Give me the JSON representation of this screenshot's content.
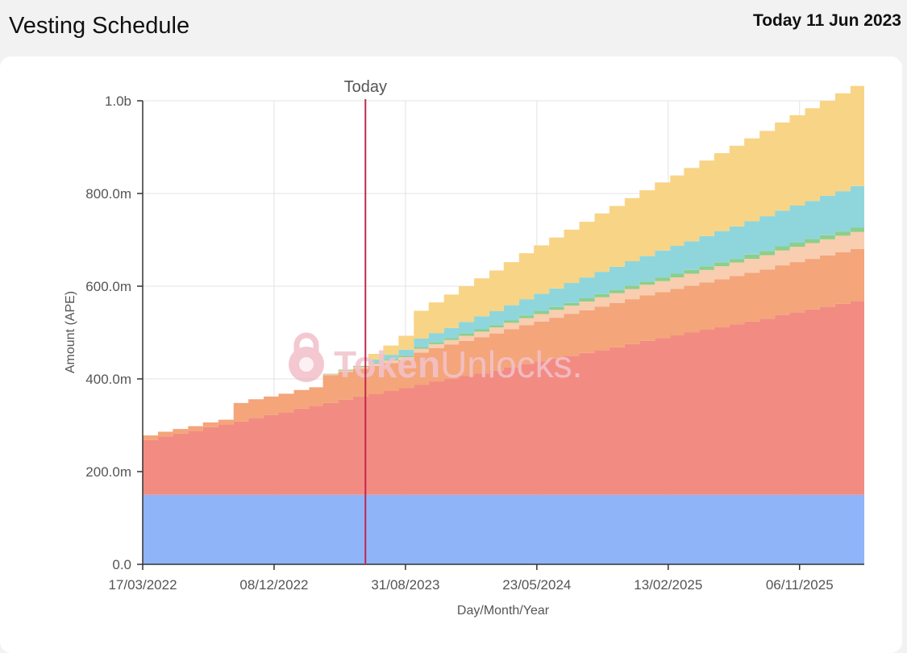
{
  "header": {
    "title": "Vesting Schedule",
    "today": "Today 11 Jun 2023"
  },
  "watermark": {
    "text": "TokenUnlocks.",
    "strong": "Token",
    "light": "Unlocks."
  },
  "chart_data": {
    "type": "area",
    "stacked": true,
    "step": true,
    "xlabel": "Day/Month/Year",
    "ylabel": "Amount (APE)",
    "ylim": [
      0,
      1000000000
    ],
    "y_ticks": [
      {
        "value": 0,
        "label": "0.0"
      },
      {
        "value": 200000000,
        "label": "200.0m"
      },
      {
        "value": 400000000,
        "label": "400.0m"
      },
      {
        "value": 600000000,
        "label": "600.0m"
      },
      {
        "value": 800000000,
        "label": "800.0m"
      },
      {
        "value": 1000000000,
        "label": "1.0b"
      }
    ],
    "x_range": [
      "2022-03-17",
      "2026-03-17"
    ],
    "x_ticks": [
      {
        "date": "2022-03-17",
        "label": "17/03/2022"
      },
      {
        "date": "2022-12-08",
        "label": "08/12/2022"
      },
      {
        "date": "2023-08-31",
        "label": "31/08/2023"
      },
      {
        "date": "2024-05-23",
        "label": "23/05/2024"
      },
      {
        "date": "2025-02-13",
        "label": "13/02/2025"
      },
      {
        "date": "2025-11-06",
        "label": "06/11/2025"
      }
    ],
    "today": {
      "date": "2023-06-11",
      "label": "Today"
    },
    "grid": true,
    "periods": [
      "2022-03",
      "2022-04",
      "2022-05",
      "2022-06",
      "2022-07",
      "2022-08",
      "2022-09",
      "2022-10",
      "2022-11",
      "2022-12",
      "2023-01",
      "2023-02",
      "2023-03",
      "2023-04",
      "2023-05",
      "2023-06",
      "2023-07",
      "2023-08",
      "2023-09",
      "2023-10",
      "2023-11",
      "2023-12",
      "2024-01",
      "2024-02",
      "2024-03",
      "2024-04",
      "2024-05",
      "2024-06",
      "2024-07",
      "2024-08",
      "2024-09",
      "2024-10",
      "2024-11",
      "2024-12",
      "2025-01",
      "2025-02",
      "2025-03",
      "2025-04",
      "2025-05",
      "2025-06",
      "2025-07",
      "2025-08",
      "2025-09",
      "2025-10",
      "2025-11",
      "2025-12",
      "2026-01",
      "2026-02"
    ],
    "series": [
      {
        "color": "#8fb4f7",
        "values": [
          150,
          150,
          150,
          150,
          150,
          150,
          150,
          150,
          150,
          150,
          150,
          150,
          150,
          150,
          150,
          150,
          150,
          150,
          150,
          150,
          150,
          150,
          150,
          150,
          150,
          150,
          150,
          150,
          150,
          150,
          150,
          150,
          150,
          150,
          150,
          150,
          150,
          150,
          150,
          150,
          150,
          150,
          150,
          150,
          150,
          150,
          150,
          150
        ]
      },
      {
        "color": "#f28c82",
        "values": [
          118,
          126,
          132,
          138,
          146,
          152,
          158,
          166,
          172,
          178,
          186,
          192,
          198,
          205,
          212,
          218,
          224,
          230,
          237,
          244,
          250,
          256,
          262,
          268,
          275,
          282,
          288,
          294,
          300,
          306,
          312,
          318,
          325,
          332,
          338,
          344,
          350,
          356,
          362,
          368,
          374,
          380,
          388,
          394,
          400,
          406,
          412,
          418
        ]
      },
      {
        "color": "#f4a57a",
        "values": [
          10,
          10,
          10,
          10,
          10,
          10,
          40,
          40,
          40,
          40,
          40,
          40,
          60,
          60,
          60,
          60,
          60,
          60,
          70,
          72,
          74,
          76,
          78,
          80,
          82,
          84,
          86,
          88,
          90,
          92,
          94,
          96,
          97,
          98,
          99,
          100,
          101,
          102,
          103,
          104,
          105,
          106,
          107,
          108,
          109,
          110,
          111,
          112
        ]
      },
      {
        "color": "#f8cdb0",
        "values": [
          0,
          0,
          0,
          0,
          0,
          0,
          0,
          0,
          0,
          0,
          0,
          0,
          2,
          3,
          4,
          5,
          6,
          7,
          8,
          9,
          10,
          11,
          12,
          13,
          14,
          15,
          16,
          17,
          18,
          19,
          20,
          21,
          22,
          23,
          24,
          25,
          26,
          27,
          28,
          29,
          30,
          31,
          32,
          33,
          34,
          35,
          36,
          37
        ]
      },
      {
        "color": "#8ccf8a",
        "values": [
          0,
          0,
          0,
          0,
          0,
          0,
          0,
          0,
          0,
          0,
          0,
          0,
          1,
          2,
          2,
          2,
          2,
          3,
          4,
          4,
          4,
          5,
          5,
          5,
          5,
          6,
          6,
          6,
          6,
          7,
          7,
          7,
          7,
          7,
          8,
          8,
          8,
          8,
          8,
          8,
          9,
          9,
          9,
          9,
          9,
          9,
          9,
          9
        ]
      },
      {
        "color": "#8fd6dc",
        "values": [
          0,
          0,
          0,
          0,
          0,
          0,
          0,
          0,
          0,
          0,
          0,
          0,
          0,
          0,
          0,
          7,
          10,
          13,
          18,
          20,
          22,
          25,
          28,
          30,
          33,
          35,
          38,
          40,
          43,
          45,
          48,
          50,
          53,
          55,
          58,
          60,
          62,
          65,
          68,
          70,
          72,
          75,
          77,
          80,
          82,
          85,
          87,
          90
        ]
      },
      {
        "color": "#f8d486",
        "values": [
          0,
          0,
          0,
          0,
          0,
          0,
          0,
          0,
          0,
          0,
          0,
          0,
          0,
          0,
          0,
          12,
          20,
          30,
          60,
          66,
          72,
          77,
          82,
          88,
          93,
          99,
          104,
          110,
          115,
          120,
          126,
          131,
          136,
          142,
          147,
          152,
          158,
          163,
          168,
          174,
          179,
          184,
          190,
          195,
          200,
          205,
          211,
          216
        ]
      }
    ]
  }
}
